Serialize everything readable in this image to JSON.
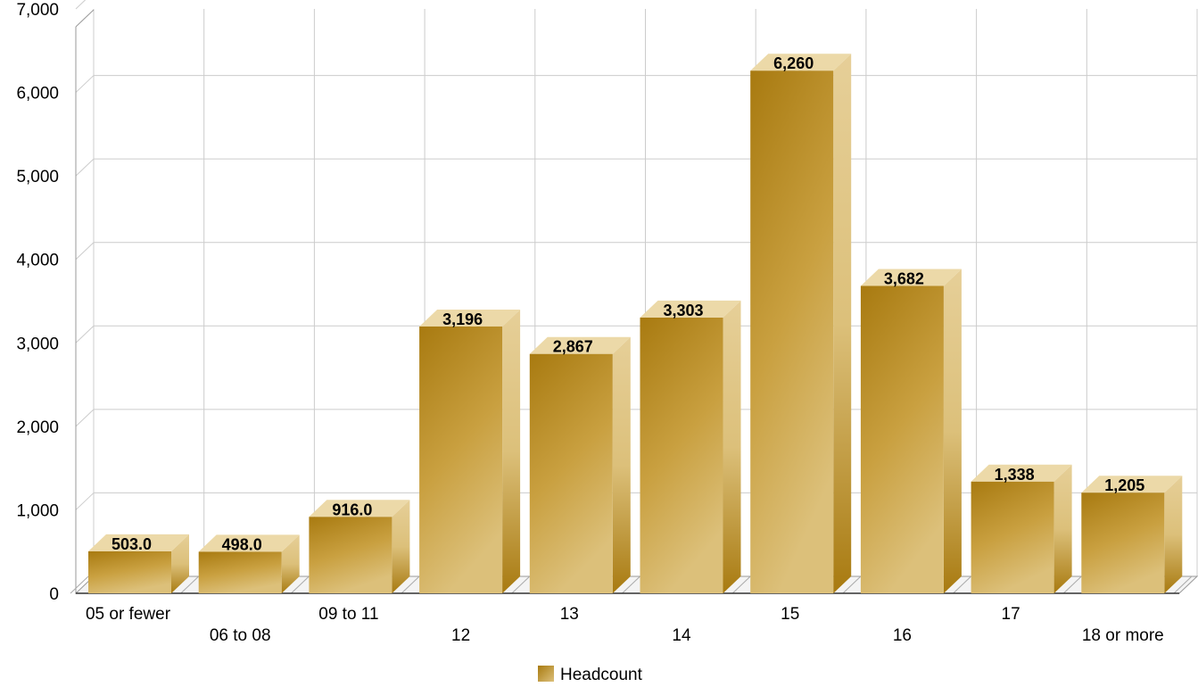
{
  "chart_data": {
    "type": "bar",
    "categories": [
      "05 or fewer",
      "06 to 08",
      "09 to 11",
      "12",
      "13",
      "14",
      "15",
      "16",
      "17",
      "18 or more"
    ],
    "series": [
      {
        "name": "Headcount",
        "values": [
          503,
          498,
          916,
          3196,
          2867,
          3303,
          6260,
          3682,
          1338,
          1205
        ],
        "labels": [
          "503.0",
          "498.0",
          "916.0",
          "3,196",
          "2,867",
          "3,303",
          "6,260",
          "3,682",
          "1,338",
          "1,205"
        ]
      }
    ],
    "y_ticks": [
      "0",
      "1,000",
      "2,000",
      "3,000",
      "4,000",
      "5,000",
      "6,000",
      "7,000"
    ],
    "ylim": [
      0,
      7000
    ],
    "grid": true,
    "legend_position": "bottom-center",
    "style": "3d-bar",
    "colors": {
      "bar_front_dark": "#a87a10",
      "bar_front_light": "#d8b870",
      "bar_side": "#b8860b",
      "bar_top": "#ecd9a8",
      "gridline": "#cccccc"
    }
  }
}
